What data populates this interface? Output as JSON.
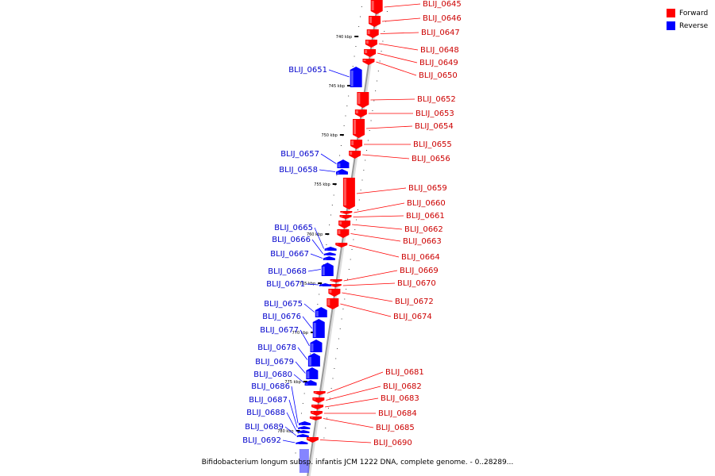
{
  "caption": "Bifidobacterium longum subsp. infantis JCM 1222 DNA, complete genome. - 0..28289...",
  "legend": [
    {
      "label": "Forward",
      "color": "#ff0000"
    },
    {
      "label": "Reverse",
      "color": "#0000ff"
    }
  ],
  "colors": {
    "forward": "#ff0000",
    "reverse": "#0000ff",
    "axis": "#999999"
  },
  "ticks": [
    "740 kbp",
    "745 kbp",
    "750 kbp",
    "755 kbp",
    "760 kbp",
    "765 kbp",
    "770 kbp",
    "775 kbp",
    "780 kbp"
  ],
  "genes_forward": [
    "BLIJ_0645",
    "BLIJ_0646",
    "BLIJ_0647",
    "BLIJ_0648",
    "BLIJ_0649",
    "BLIJ_0650",
    "BLIJ_0652",
    "BLIJ_0653",
    "BLIJ_0654",
    "BLIJ_0655",
    "BLIJ_0656",
    "BLIJ_0659",
    "BLIJ_0660",
    "BLIJ_0661",
    "BLIJ_0662",
    "BLIJ_0663",
    "BLIJ_0664",
    "BLIJ_0669",
    "BLIJ_0670",
    "BLIJ_0672",
    "BLIJ_0674",
    "BLIJ_0681",
    "BLIJ_0682",
    "BLIJ_0683",
    "BLIJ_0684",
    "BLIJ_0685",
    "BLIJ_0690"
  ],
  "genes_reverse": [
    "BLIJ_0651",
    "BLIJ_0657",
    "BLIJ_0658",
    "BLIJ_0665",
    "BLIJ_0666",
    "BLIJ_0667",
    "BLIJ_0668",
    "BLIJ_0671",
    "BLIJ_0675",
    "BLIJ_0676",
    "BLIJ_0677",
    "BLIJ_0678",
    "BLIJ_0679",
    "BLIJ_0680",
    "BLIJ_0686",
    "BLIJ_0687",
    "BLIJ_0688",
    "BLIJ_0689",
    "BLIJ_0692"
  ]
}
